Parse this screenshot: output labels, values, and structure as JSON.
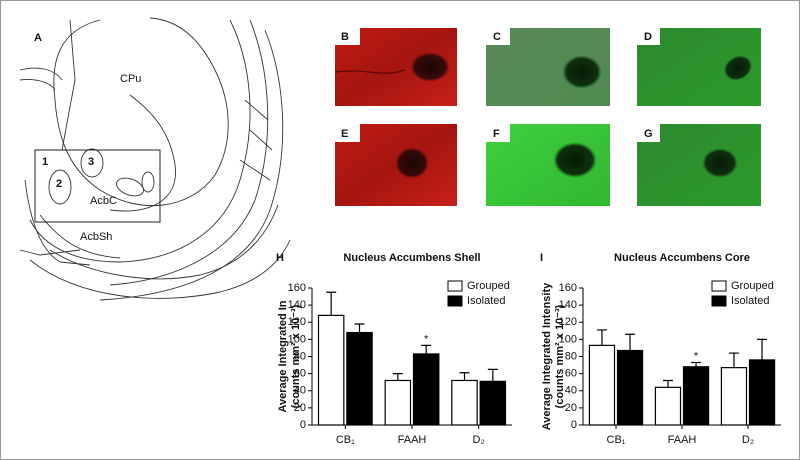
{
  "figure": {
    "panel_labels": [
      "A",
      "B",
      "C",
      "D",
      "E",
      "F",
      "G",
      "H",
      "I"
    ],
    "atlas_labels": [
      "CPu",
      "AcbC",
      "AcbSh",
      "1",
      "2",
      "3"
    ]
  },
  "chart_data": [
    {
      "type": "bar",
      "title": "Nucleus Accumbens Shell",
      "y_label": [
        "Average Integrated In",
        "(counts mm² x 10⁻³)"
      ],
      "categories": [
        "CB₁",
        "FAAH",
        "D₂"
      ],
      "series": [
        {
          "name": "Grouped",
          "color": "#ffffff",
          "values": [
            128,
            52,
            52
          ],
          "errors": [
            27,
            8,
            9
          ]
        },
        {
          "name": "Isolated",
          "color": "#000000",
          "values": [
            108,
            83,
            51
          ],
          "errors": [
            10,
            10,
            14
          ]
        }
      ],
      "annotations": [
        {
          "text": "*",
          "category": "FAAH",
          "series": "Isolated"
        }
      ],
      "ylim": [
        0,
        160
      ],
      "yticks": [
        0,
        20,
        40,
        60,
        80,
        100,
        120,
        140,
        160
      ],
      "grid": false
    },
    {
      "type": "bar",
      "title": "Nucleus Accumbens Core",
      "y_label": [
        "Average Integrated Intensity",
        "(counts mm² x 10⁻³)"
      ],
      "categories": [
        "CB₁",
        "FAAH",
        "D₂"
      ],
      "series": [
        {
          "name": "Grouped",
          "color": "#ffffff",
          "values": [
            93,
            44,
            67
          ],
          "errors": [
            18,
            8,
            17
          ]
        },
        {
          "name": "Isolated",
          "color": "#000000",
          "values": [
            87,
            68,
            76
          ],
          "errors": [
            19,
            5,
            24
          ]
        }
      ],
      "annotations": [
        {
          "text": "*",
          "category": "FAAH",
          "series": "Isolated"
        }
      ],
      "ylim": [
        0,
        160
      ],
      "yticks": [
        0,
        20,
        40,
        60,
        80,
        100,
        120,
        140,
        160
      ],
      "grid": false
    }
  ]
}
